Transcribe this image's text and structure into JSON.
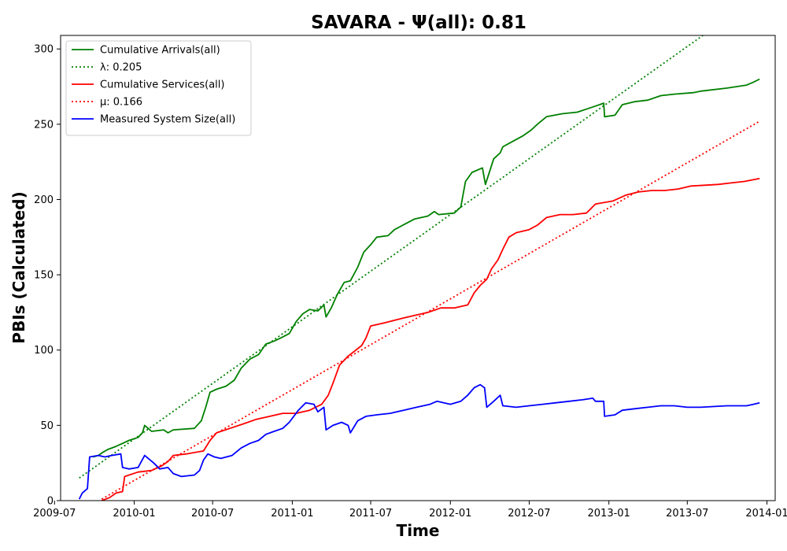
{
  "chart_data": {
    "type": "line",
    "title": "SAVARA -  Ψ(all): 0.81",
    "xlabel": "Time",
    "ylabel": "PBIs (Calculated)",
    "xlim": [
      "2009-07-15",
      "2014-01-20"
    ],
    "ylim": [
      0,
      309
    ],
    "x_ticks": [
      "2009-07",
      "2010-01",
      "2010-07",
      "2011-01",
      "2011-07",
      "2012-01",
      "2012-07",
      "2013-01",
      "2013-07",
      "2014-01"
    ],
    "y_ticks": [
      0,
      50,
      100,
      150,
      200,
      250,
      300
    ],
    "grid": false,
    "legend_position": "top-left",
    "series": [
      {
        "name": "Cumulative Arrivals(all)",
        "style": "solid",
        "color": "#008000",
        "points": [
          [
            "2009-09-28",
            29
          ],
          [
            "2009-10-10",
            30
          ],
          [
            "2009-10-20",
            32
          ],
          [
            "2009-11-01",
            34
          ],
          [
            "2009-11-20",
            36
          ],
          [
            "2009-12-05",
            38
          ],
          [
            "2009-12-20",
            40
          ],
          [
            "2010-01-10",
            42
          ],
          [
            "2010-01-20",
            45
          ],
          [
            "2010-01-25",
            50
          ],
          [
            "2010-02-10",
            46
          ],
          [
            "2010-03-10",
            47
          ],
          [
            "2010-03-20",
            45
          ],
          [
            "2010-04-01",
            47
          ],
          [
            "2010-05-20",
            48
          ],
          [
            "2010-06-05",
            53
          ],
          [
            "2010-06-15",
            62
          ],
          [
            "2010-06-25",
            72
          ],
          [
            "2010-07-10",
            74
          ],
          [
            "2010-08-01",
            76
          ],
          [
            "2010-08-20",
            80
          ],
          [
            "2010-09-05",
            88
          ],
          [
            "2010-09-25",
            94
          ],
          [
            "2010-10-15",
            97
          ],
          [
            "2010-11-01",
            104
          ],
          [
            "2010-11-20",
            106
          ],
          [
            "2010-12-05",
            108
          ],
          [
            "2010-12-25",
            111
          ],
          [
            "2011-01-10",
            119
          ],
          [
            "2011-01-25",
            124
          ],
          [
            "2011-02-10",
            127
          ],
          [
            "2011-03-01",
            126
          ],
          [
            "2011-03-15",
            130
          ],
          [
            "2011-03-20",
            122
          ],
          [
            "2011-04-01",
            128
          ],
          [
            "2011-04-15",
            137
          ],
          [
            "2011-05-01",
            145
          ],
          [
            "2011-05-15",
            146
          ],
          [
            "2011-06-01",
            155
          ],
          [
            "2011-06-15",
            165
          ],
          [
            "2011-07-01",
            170
          ],
          [
            "2011-07-15",
            175
          ],
          [
            "2011-08-10",
            176
          ],
          [
            "2011-08-25",
            180
          ],
          [
            "2011-09-20",
            184
          ],
          [
            "2011-10-10",
            187
          ],
          [
            "2011-11-10",
            189
          ],
          [
            "2011-11-25",
            192
          ],
          [
            "2011-12-05",
            190
          ],
          [
            "2012-01-10",
            191
          ],
          [
            "2012-01-25",
            195
          ],
          [
            "2012-02-05",
            212
          ],
          [
            "2012-02-20",
            218
          ],
          [
            "2012-03-15",
            221
          ],
          [
            "2012-03-22",
            210
          ],
          [
            "2012-04-10",
            227
          ],
          [
            "2012-04-25",
            231
          ],
          [
            "2012-05-01",
            235
          ],
          [
            "2012-05-20",
            238
          ],
          [
            "2012-06-15",
            242
          ],
          [
            "2012-07-05",
            246
          ],
          [
            "2012-07-20",
            250
          ],
          [
            "2012-08-10",
            255
          ],
          [
            "2012-09-15",
            257
          ],
          [
            "2012-10-20",
            258
          ],
          [
            "2012-11-20",
            261
          ],
          [
            "2012-12-20",
            264
          ],
          [
            "2012-12-22",
            255
          ],
          [
            "2013-01-15",
            256
          ],
          [
            "2013-02-01",
            263
          ],
          [
            "2013-03-01",
            265
          ],
          [
            "2013-04-01",
            266
          ],
          [
            "2013-05-01",
            269
          ],
          [
            "2013-06-01",
            270
          ],
          [
            "2013-07-15",
            271
          ],
          [
            "2013-08-01",
            272
          ],
          [
            "2013-10-01",
            274
          ],
          [
            "2013-11-15",
            276
          ],
          [
            "2013-12-01",
            278
          ],
          [
            "2013-12-15",
            280
          ]
        ]
      },
      {
        "name": "λ: 0.205",
        "style": "dotted",
        "color": "#008000",
        "points": [
          [
            "2009-08-27",
            15
          ],
          [
            "2013-08-06",
            309
          ]
        ]
      },
      {
        "name": "Cumulative Services(all)",
        "style": "solid",
        "color": "#ff0000",
        "points": [
          [
            "2009-10-18",
            0
          ],
          [
            "2009-11-05",
            2
          ],
          [
            "2009-11-20",
            5
          ],
          [
            "2009-12-05",
            6
          ],
          [
            "2009-12-10",
            16
          ],
          [
            "2010-01-10",
            19
          ],
          [
            "2010-02-10",
            20
          ],
          [
            "2010-03-05",
            23
          ],
          [
            "2010-03-20",
            26
          ],
          [
            "2010-04-01",
            30
          ],
          [
            "2010-05-01",
            31
          ],
          [
            "2010-06-10",
            33
          ],
          [
            "2010-06-25",
            40
          ],
          [
            "2010-07-10",
            45
          ],
          [
            "2010-08-10",
            48
          ],
          [
            "2010-09-10",
            51
          ],
          [
            "2010-10-10",
            54
          ],
          [
            "2010-11-10",
            56
          ],
          [
            "2010-12-10",
            58
          ],
          [
            "2011-01-10",
            58
          ],
          [
            "2011-02-10",
            60
          ],
          [
            "2011-03-10",
            64
          ],
          [
            "2011-03-25",
            70
          ],
          [
            "2011-04-05",
            78
          ],
          [
            "2011-04-20",
            90
          ],
          [
            "2011-05-10",
            96
          ],
          [
            "2011-06-10",
            103
          ],
          [
            "2011-06-20",
            108
          ],
          [
            "2011-07-01",
            116
          ],
          [
            "2011-08-01",
            118
          ],
          [
            "2011-09-10",
            121
          ],
          [
            "2011-10-10",
            123
          ],
          [
            "2011-11-10",
            125
          ],
          [
            "2011-12-10",
            128
          ],
          [
            "2012-01-10",
            128
          ],
          [
            "2012-02-10",
            130
          ],
          [
            "2012-02-25",
            138
          ],
          [
            "2012-03-10",
            143
          ],
          [
            "2012-03-25",
            147
          ],
          [
            "2012-04-05",
            154
          ],
          [
            "2012-04-20",
            160
          ],
          [
            "2012-05-01",
            167
          ],
          [
            "2012-05-15",
            175
          ],
          [
            "2012-06-01",
            178
          ],
          [
            "2012-07-01",
            180
          ],
          [
            "2012-07-20",
            183
          ],
          [
            "2012-08-10",
            188
          ],
          [
            "2012-09-10",
            190
          ],
          [
            "2012-10-10",
            190
          ],
          [
            "2012-11-10",
            191
          ],
          [
            "2012-12-01",
            197
          ],
          [
            "2013-01-10",
            199
          ],
          [
            "2013-02-10",
            203
          ],
          [
            "2013-03-10",
            205
          ],
          [
            "2013-04-10",
            206
          ],
          [
            "2013-05-10",
            206
          ],
          [
            "2013-06-10",
            207
          ],
          [
            "2013-07-10",
            209
          ],
          [
            "2013-09-10",
            210
          ],
          [
            "2013-10-10",
            211
          ],
          [
            "2013-11-10",
            212
          ],
          [
            "2013-12-15",
            214
          ]
        ]
      },
      {
        "name": "μ: 0.166",
        "style": "dotted",
        "color": "#ff0000",
        "points": [
          [
            "2009-10-18",
            1
          ],
          [
            "2013-12-15",
            252
          ]
        ]
      },
      {
        "name": "Measured System Size(all)",
        "style": "solid",
        "color": "#0000ff",
        "points": [
          [
            "2009-08-27",
            1
          ],
          [
            "2009-09-03",
            5
          ],
          [
            "2009-09-15",
            8
          ],
          [
            "2009-09-20",
            29
          ],
          [
            "2009-10-10",
            30
          ],
          [
            "2009-10-25",
            29
          ],
          [
            "2009-11-10",
            30
          ],
          [
            "2009-12-01",
            31
          ],
          [
            "2009-12-05",
            22
          ],
          [
            "2009-12-20",
            21
          ],
          [
            "2010-01-10",
            22
          ],
          [
            "2010-01-25",
            30
          ],
          [
            "2010-02-15",
            25
          ],
          [
            "2010-03-01",
            21
          ],
          [
            "2010-03-20",
            22
          ],
          [
            "2010-04-01",
            18
          ],
          [
            "2010-04-20",
            16
          ],
          [
            "2010-05-20",
            17
          ],
          [
            "2010-06-01",
            20
          ],
          [
            "2010-06-10",
            27
          ],
          [
            "2010-06-20",
            31
          ],
          [
            "2010-07-05",
            29
          ],
          [
            "2010-07-20",
            28
          ],
          [
            "2010-08-15",
            30
          ],
          [
            "2010-09-05",
            35
          ],
          [
            "2010-09-25",
            38
          ],
          [
            "2010-10-15",
            40
          ],
          [
            "2010-11-01",
            44
          ],
          [
            "2010-11-20",
            46
          ],
          [
            "2010-12-10",
            48
          ],
          [
            "2010-12-25",
            52
          ],
          [
            "2011-01-15",
            60
          ],
          [
            "2011-02-01",
            65
          ],
          [
            "2011-02-20",
            64
          ],
          [
            "2011-03-01",
            59
          ],
          [
            "2011-03-15",
            62
          ],
          [
            "2011-03-20",
            47
          ],
          [
            "2011-04-05",
            50
          ],
          [
            "2011-04-25",
            52
          ],
          [
            "2011-05-10",
            50
          ],
          [
            "2011-05-15",
            45
          ],
          [
            "2011-06-01",
            53
          ],
          [
            "2011-06-20",
            56
          ],
          [
            "2011-07-15",
            57
          ],
          [
            "2011-08-15",
            58
          ],
          [
            "2011-09-15",
            60
          ],
          [
            "2011-10-15",
            62
          ],
          [
            "2011-11-15",
            64
          ],
          [
            "2011-12-01",
            66
          ],
          [
            "2012-01-01",
            64
          ],
          [
            "2012-01-25",
            66
          ],
          [
            "2012-02-10",
            70
          ],
          [
            "2012-02-25",
            75
          ],
          [
            "2012-03-10",
            77
          ],
          [
            "2012-03-20",
            75
          ],
          [
            "2012-03-25",
            62
          ],
          [
            "2012-04-10",
            66
          ],
          [
            "2012-04-25",
            70
          ],
          [
            "2012-05-01",
            63
          ],
          [
            "2012-06-01",
            62
          ],
          [
            "2012-07-01",
            63
          ],
          [
            "2012-08-01",
            64
          ],
          [
            "2012-09-01",
            65
          ],
          [
            "2012-10-01",
            66
          ],
          [
            "2012-11-01",
            67
          ],
          [
            "2012-11-25",
            68
          ],
          [
            "2012-12-01",
            66
          ],
          [
            "2012-12-20",
            66
          ],
          [
            "2012-12-22",
            56
          ],
          [
            "2013-01-15",
            57
          ],
          [
            "2013-02-01",
            60
          ],
          [
            "2013-03-01",
            61
          ],
          [
            "2013-04-01",
            62
          ],
          [
            "2013-05-01",
            63
          ],
          [
            "2013-06-01",
            63
          ],
          [
            "2013-07-01",
            62
          ],
          [
            "2013-08-01",
            62
          ],
          [
            "2013-10-01",
            63
          ],
          [
            "2013-11-15",
            63
          ],
          [
            "2013-12-01",
            64
          ],
          [
            "2013-12-15",
            65
          ]
        ]
      }
    ]
  }
}
